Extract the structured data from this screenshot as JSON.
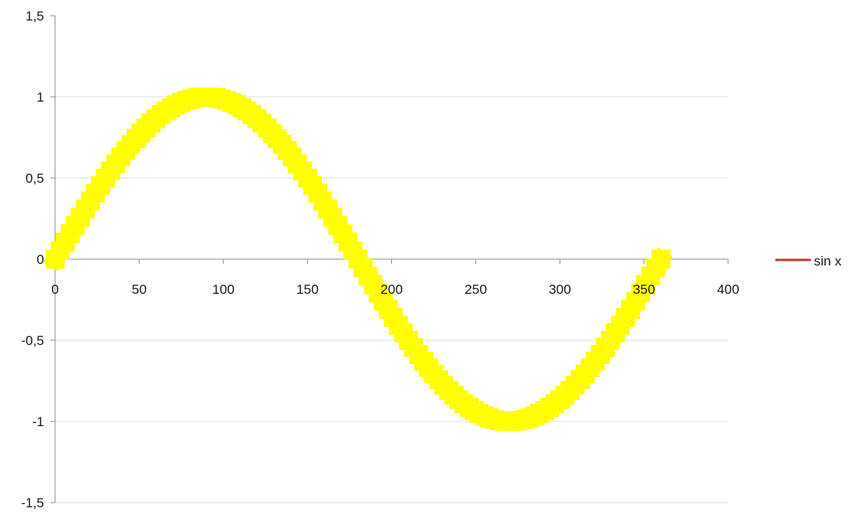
{
  "chart_data": {
    "type": "line",
    "title": "",
    "xlabel": "",
    "ylabel": "",
    "xlim": [
      0,
      400
    ],
    "ylim": [
      -1.5,
      1.5
    ],
    "x_ticks": [
      0,
      50,
      100,
      150,
      200,
      250,
      300,
      350,
      400
    ],
    "x_tick_labels": [
      "0",
      "50",
      "100",
      "150",
      "200",
      "250",
      "300",
      "350",
      "400"
    ],
    "y_ticks": [
      1.5,
      1,
      0.5,
      0,
      -0.5,
      -1,
      -1.5
    ],
    "y_tick_labels": [
      "1,5",
      "1",
      "0,5",
      "0",
      "-0,5",
      "-1",
      "-1,5"
    ],
    "grid": "horizontal",
    "legend_position": "right",
    "series": [
      {
        "name": "sin x",
        "legend_color": "#b5403a",
        "marker_color": "#ffff00",
        "x_step": 1,
        "x_start": 0,
        "x_end": 360,
        "function": "sin(x degrees)"
      }
    ]
  }
}
